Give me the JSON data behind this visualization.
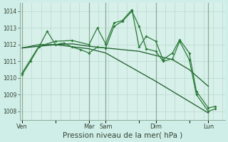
{
  "background_color": "#d0eee8",
  "plot_bg_color": "#d8f0ea",
  "grid_color": "#b8d8cc",
  "vline_color": "#8aaa99",
  "line_dark": "#1a5c28",
  "line_bright": "#2a7a38",
  "yticks": [
    1008,
    1009,
    1010,
    1011,
    1012,
    1013,
    1014
  ],
  "ylim": [
    1007.5,
    1014.5
  ],
  "xlim": [
    -1,
    85
  ],
  "xlabel": "Pression niveau de la mer( hPa )",
  "xlabel_fontsize": 7.5,
  "xtick_labels": [
    "Ven",
    "",
    "Mar",
    "Sam",
    "",
    "Dim",
    "",
    "Lun"
  ],
  "xtick_positions": [
    0,
    14,
    28,
    35,
    49,
    56,
    70,
    78
  ],
  "vline_positions": [
    0,
    28,
    35,
    56,
    78
  ],
  "n_xgrid": 21,
  "series1_x": [
    0,
    3.5,
    7,
    10.5,
    14,
    17.5,
    21,
    24.5,
    28,
    31.5,
    35,
    38.5,
    42,
    46,
    49,
    52,
    56,
    59,
    63,
    66,
    70,
    73,
    78,
    81
  ],
  "series1_y": [
    1010.2,
    1011.0,
    1011.85,
    1012.8,
    1012.0,
    1012.1,
    1011.85,
    1011.7,
    1011.5,
    1011.85,
    1011.8,
    1013.1,
    1013.4,
    1014.0,
    1013.1,
    1011.75,
    1011.6,
    1011.0,
    1011.15,
    1012.2,
    1011.1,
    1009.0,
    1008.0,
    1008.15
  ],
  "series2_x": [
    0,
    7,
    14,
    21,
    28,
    35,
    42,
    49,
    56,
    63,
    70,
    78
  ],
  "series2_y": [
    1011.8,
    1012.0,
    1012.0,
    1012.05,
    1011.9,
    1011.8,
    1011.7,
    1011.6,
    1011.35,
    1011.1,
    1010.5,
    1009.5
  ],
  "series3_x": [
    0,
    14,
    28,
    35,
    56,
    78
  ],
  "series3_y": [
    1011.8,
    1012.0,
    1011.75,
    1011.5,
    1009.8,
    1007.9
  ],
  "series4_x": [
    0,
    7,
    14,
    21,
    28,
    31.5,
    35,
    38.5,
    42,
    46,
    49,
    52,
    56,
    59,
    63,
    66,
    70,
    73,
    78,
    81
  ],
  "series4_y": [
    1010.3,
    1011.9,
    1012.2,
    1012.25,
    1012.0,
    1013.0,
    1012.05,
    1013.3,
    1013.45,
    1014.1,
    1011.85,
    1012.5,
    1012.2,
    1011.1,
    1011.5,
    1012.3,
    1011.5,
    1009.2,
    1008.2,
    1008.3
  ]
}
